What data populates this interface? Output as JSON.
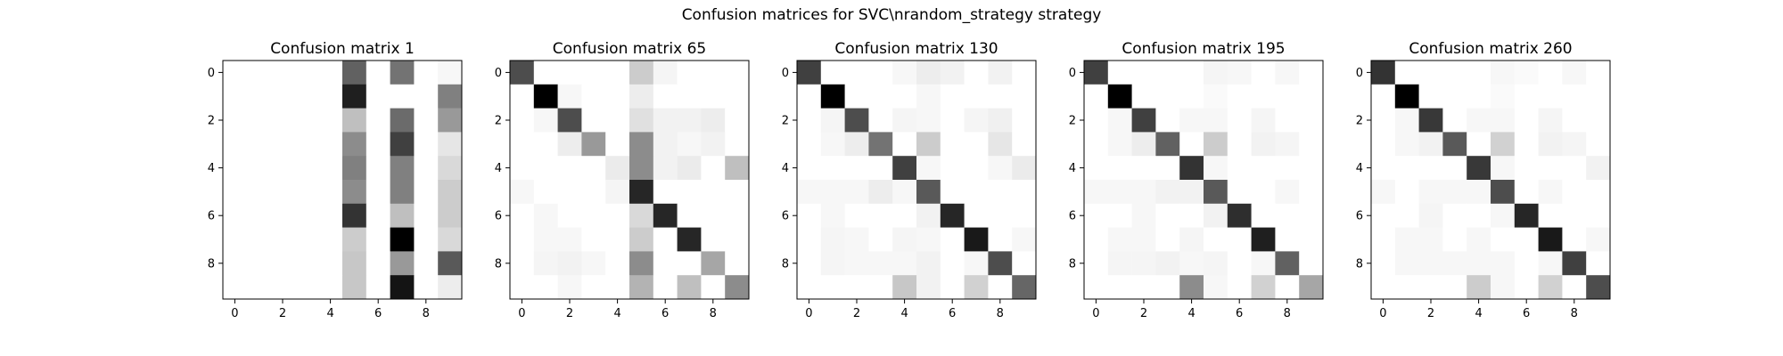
{
  "figure": {
    "suptitle": "Confusion matrices for SVC\\nrandom_strategy strategy"
  },
  "chart_data": {
    "type": "heatmap",
    "colormap": "gray_r",
    "ticks": [
      0,
      2,
      4,
      6,
      8
    ],
    "xlim": [
      -0.5,
      9.5
    ],
    "ylim": [
      9.5,
      -0.5
    ],
    "grid": false,
    "legend": "none",
    "matrices": [
      {
        "title": "Confusion matrix 1",
        "values": [
          [
            0,
            0,
            0,
            0,
            0,
            0.62,
            0,
            0.55,
            0,
            0.03
          ],
          [
            0,
            0,
            0,
            0,
            0,
            0.88,
            0,
            0,
            0,
            0.5
          ],
          [
            0,
            0,
            0,
            0,
            0,
            0.25,
            0,
            0.58,
            0,
            0.4
          ],
          [
            0,
            0,
            0,
            0,
            0,
            0.45,
            0,
            0.75,
            0,
            0.1
          ],
          [
            0,
            0,
            0,
            0,
            0,
            0.5,
            0,
            0.5,
            0,
            0.15
          ],
          [
            0,
            0,
            0,
            0,
            0,
            0.45,
            0,
            0.5,
            0,
            0.2
          ],
          [
            0,
            0,
            0,
            0,
            0,
            0.8,
            0,
            0.25,
            0,
            0.2
          ],
          [
            0,
            0,
            0,
            0,
            0,
            0.2,
            0,
            1.0,
            0,
            0.15
          ],
          [
            0,
            0,
            0,
            0,
            0,
            0.22,
            0,
            0.4,
            0,
            0.65
          ],
          [
            0,
            0,
            0,
            0,
            0,
            0.22,
            0,
            0.92,
            0,
            0.07
          ]
        ]
      },
      {
        "title": "Confusion matrix 65",
        "values": [
          [
            0.7,
            0,
            0,
            0,
            0,
            0.2,
            0.04,
            0,
            0,
            0
          ],
          [
            0,
            1.0,
            0.03,
            0,
            0,
            0.07,
            0,
            0,
            0,
            0
          ],
          [
            0,
            0.03,
            0.7,
            0,
            0,
            0.12,
            0.05,
            0.05,
            0.07,
            0
          ],
          [
            0,
            0,
            0.07,
            0.4,
            0,
            0.45,
            0.05,
            0.03,
            0.05,
            0
          ],
          [
            0,
            0,
            0,
            0,
            0.08,
            0.45,
            0.05,
            0.08,
            0,
            0.25
          ],
          [
            0.03,
            0,
            0,
            0,
            0.04,
            0.85,
            0,
            0,
            0,
            0
          ],
          [
            0,
            0.03,
            0,
            0,
            0,
            0.15,
            0.85,
            0,
            0,
            0
          ],
          [
            0,
            0.03,
            0.03,
            0,
            0,
            0.2,
            0,
            0.85,
            0,
            0
          ],
          [
            0,
            0.04,
            0.05,
            0.03,
            0,
            0.45,
            0,
            0,
            0.35,
            0
          ],
          [
            0,
            0,
            0.03,
            0,
            0,
            0.3,
            0,
            0.25,
            0,
            0.45
          ]
        ]
      },
      {
        "title": "Confusion matrix 130",
        "values": [
          [
            0.75,
            0,
            0,
            0,
            0.03,
            0.07,
            0.05,
            0,
            0.05,
            0
          ],
          [
            0,
            1.0,
            0,
            0,
            0,
            0.03,
            0,
            0,
            0,
            0
          ],
          [
            0,
            0.04,
            0.7,
            0,
            0.04,
            0.03,
            0,
            0.04,
            0.06,
            0
          ],
          [
            0,
            0.03,
            0.07,
            0.55,
            0,
            0.2,
            0,
            0,
            0.1,
            0
          ],
          [
            0,
            0,
            0,
            0,
            0.75,
            0.03,
            0,
            0,
            0.03,
            0.08
          ],
          [
            0.03,
            0.03,
            0.03,
            0.07,
            0.03,
            0.65,
            0,
            0,
            0,
            0
          ],
          [
            0,
            0.03,
            0,
            0,
            0,
            0.05,
            0.85,
            0,
            0,
            0
          ],
          [
            0,
            0.04,
            0.03,
            0,
            0.04,
            0.03,
            0,
            0.9,
            0,
            0.03
          ],
          [
            0,
            0.04,
            0.03,
            0.03,
            0.03,
            0.05,
            0,
            0.03,
            0.7,
            0
          ],
          [
            0,
            0,
            0,
            0,
            0.22,
            0.05,
            0,
            0.18,
            0,
            0.6
          ]
        ]
      },
      {
        "title": "Confusion matrix 195",
        "values": [
          [
            0.75,
            0,
            0,
            0,
            0,
            0.04,
            0.03,
            0,
            0.03,
            0
          ],
          [
            0,
            1.0,
            0,
            0,
            0,
            0.02,
            0,
            0,
            0,
            0
          ],
          [
            0,
            0.03,
            0.75,
            0,
            0.03,
            0.03,
            0,
            0.04,
            0,
            0
          ],
          [
            0,
            0.03,
            0.07,
            0.62,
            0,
            0.2,
            0,
            0.05,
            0.04,
            0
          ],
          [
            0,
            0,
            0,
            0,
            0.8,
            0.03,
            0,
            0,
            0,
            0
          ],
          [
            0.03,
            0.03,
            0.03,
            0.05,
            0.05,
            0.65,
            0,
            0,
            0.03,
            0
          ],
          [
            0,
            0,
            0.03,
            0,
            0,
            0.05,
            0.82,
            0,
            0,
            0
          ],
          [
            0,
            0.03,
            0.03,
            0,
            0.04,
            0,
            0,
            0.88,
            0,
            0
          ],
          [
            0,
            0.04,
            0.04,
            0.05,
            0.03,
            0.04,
            0,
            0.03,
            0.62,
            0
          ],
          [
            0,
            0,
            0,
            0,
            0.45,
            0.03,
            0,
            0.18,
            0,
            0.35
          ]
        ]
      },
      {
        "title": "Confusion matrix 260",
        "values": [
          [
            0.8,
            0,
            0,
            0,
            0,
            0.03,
            0.02,
            0,
            0.03,
            0
          ],
          [
            0,
            1.0,
            0,
            0,
            0,
            0.02,
            0,
            0,
            0,
            0
          ],
          [
            0,
            0.03,
            0.78,
            0,
            0.03,
            0.03,
            0,
            0.04,
            0,
            0
          ],
          [
            0,
            0.03,
            0.05,
            0.65,
            0,
            0.18,
            0,
            0.05,
            0.04,
            0
          ],
          [
            0,
            0,
            0,
            0,
            0.78,
            0.03,
            0,
            0,
            0,
            0.05
          ],
          [
            0.03,
            0,
            0.03,
            0.03,
            0.03,
            0.7,
            0,
            0.03,
            0,
            0
          ],
          [
            0,
            0,
            0.04,
            0,
            0,
            0.03,
            0.85,
            0,
            0,
            0
          ],
          [
            0,
            0.03,
            0.03,
            0,
            0.03,
            0,
            0,
            0.9,
            0,
            0.03
          ],
          [
            0,
            0.03,
            0.03,
            0.03,
            0.03,
            0.03,
            0,
            0.03,
            0.75,
            0
          ],
          [
            0,
            0,
            0,
            0,
            0.2,
            0.03,
            0,
            0.18,
            0,
            0.7
          ]
        ]
      }
    ]
  }
}
